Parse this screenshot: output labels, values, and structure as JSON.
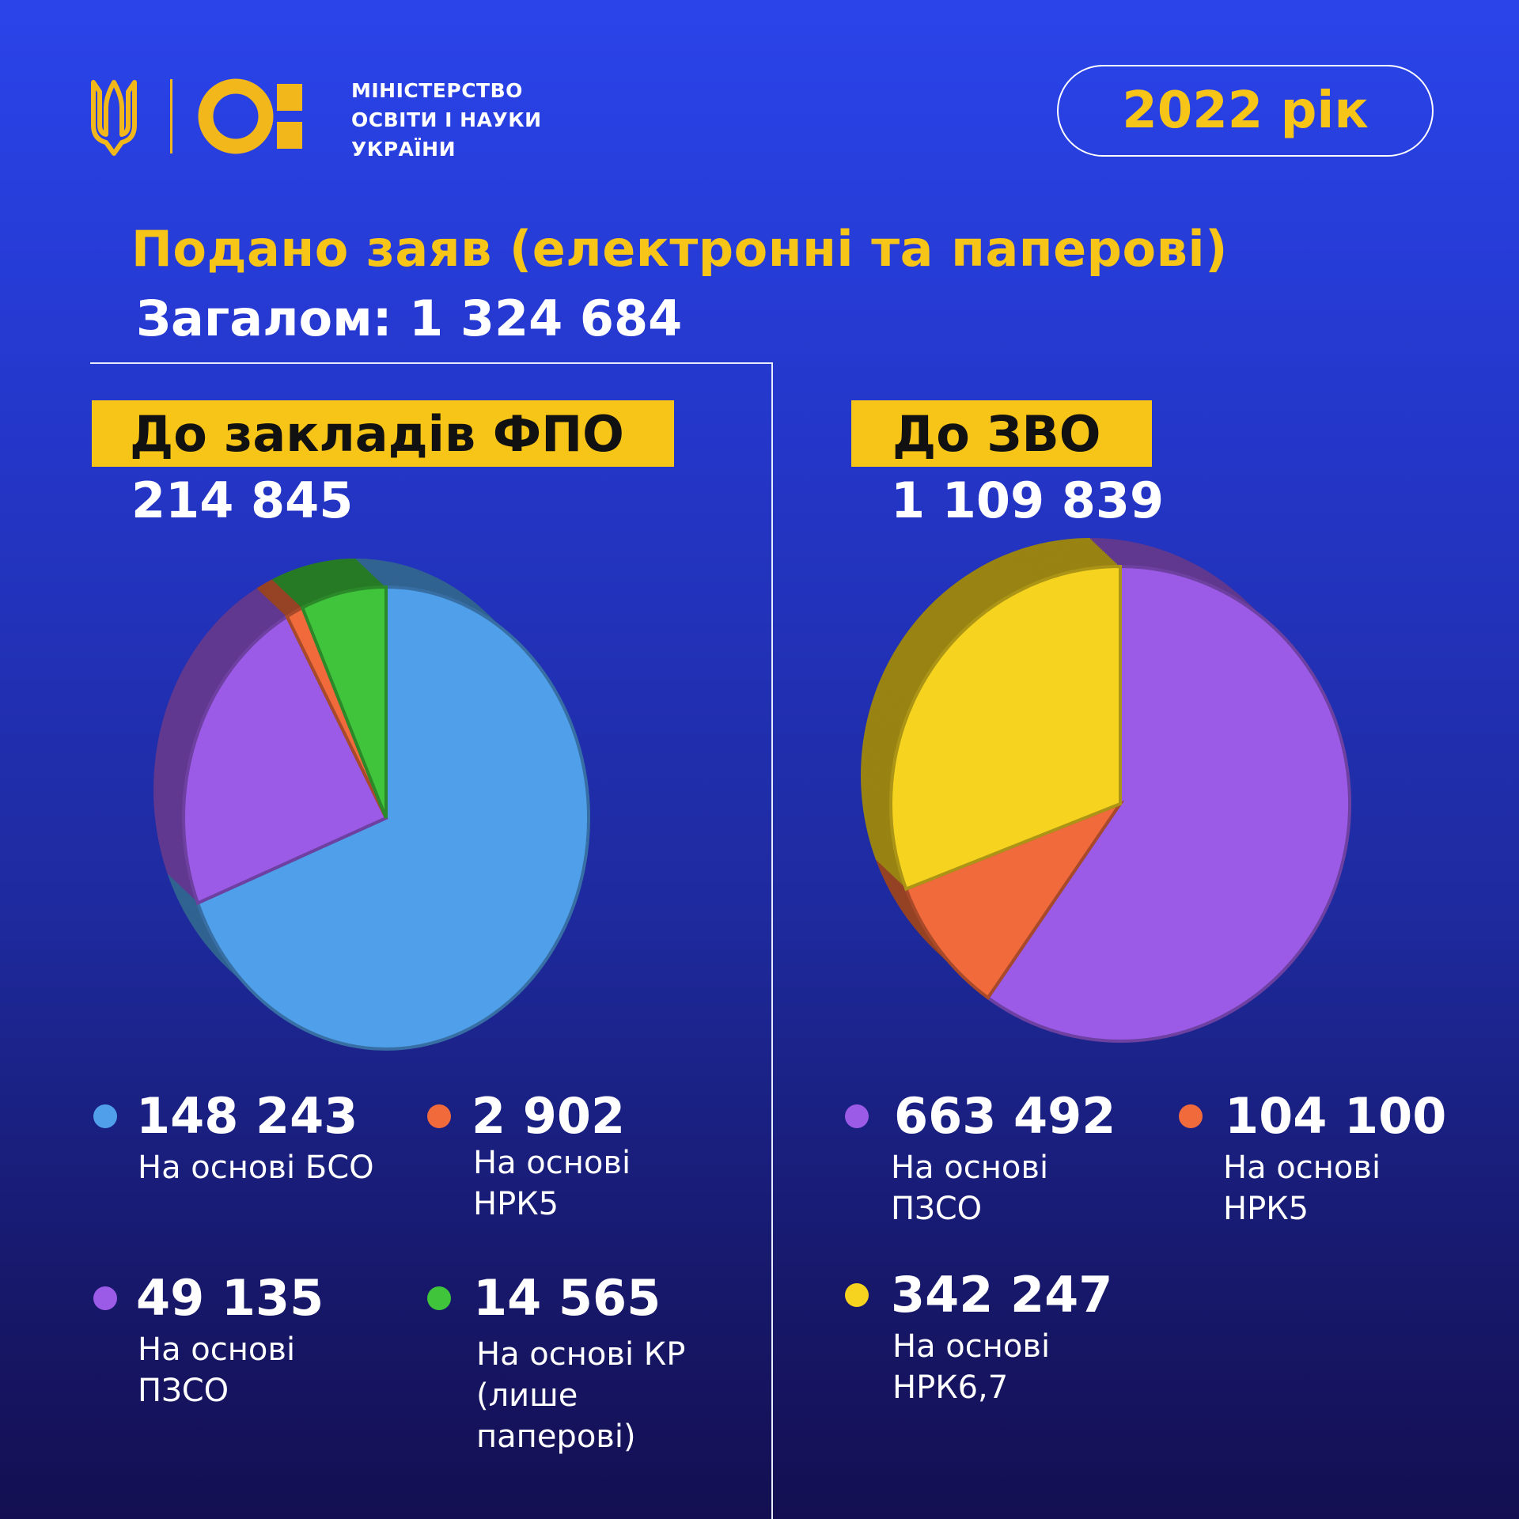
{
  "header": {
    "ministry_lines": [
      "МІНІСТЕРСТВО",
      "ОСВІТИ І НАУКИ",
      "УКРАЇНИ"
    ],
    "year": "2022 рік"
  },
  "headline": "Подано заяв (електронні та паперові)",
  "total": "Загалом: 1 324 684",
  "colors": {
    "accent": "#f7c418",
    "background": "#2436c8"
  },
  "chart_data": [
    {
      "type": "pie",
      "title": "До закладів ФПО",
      "total": "214 845",
      "slices": [
        {
          "value_label": "148 243",
          "value": 148243,
          "label": "На основі БСО",
          "color": "#4f9fea"
        },
        {
          "value_label": "2 902",
          "value": 2902,
          "label": "На основі НРК5",
          "color": "#f06a3c"
        },
        {
          "value_label": "49 135",
          "value": 49135,
          "label": "На основі ПЗСО",
          "color": "#9b5be6"
        },
        {
          "value_label": "14 565",
          "value": 14565,
          "label": "На основі КР (лише паперові)",
          "color": "#3fc43c"
        }
      ]
    },
    {
      "type": "pie",
      "title": "До ЗВО",
      "total": "1 109 839",
      "slices": [
        {
          "value_label": "663 492",
          "value": 663492,
          "label": "На основі ПЗСО",
          "color": "#9b5be6"
        },
        {
          "value_label": "104 100",
          "value": 104100,
          "label": "На основі НРК5",
          "color": "#f06a3c"
        },
        {
          "value_label": "342 247",
          "value": 342247,
          "label": "На основі НРК6,7",
          "color": "#f5d31f"
        }
      ]
    }
  ]
}
